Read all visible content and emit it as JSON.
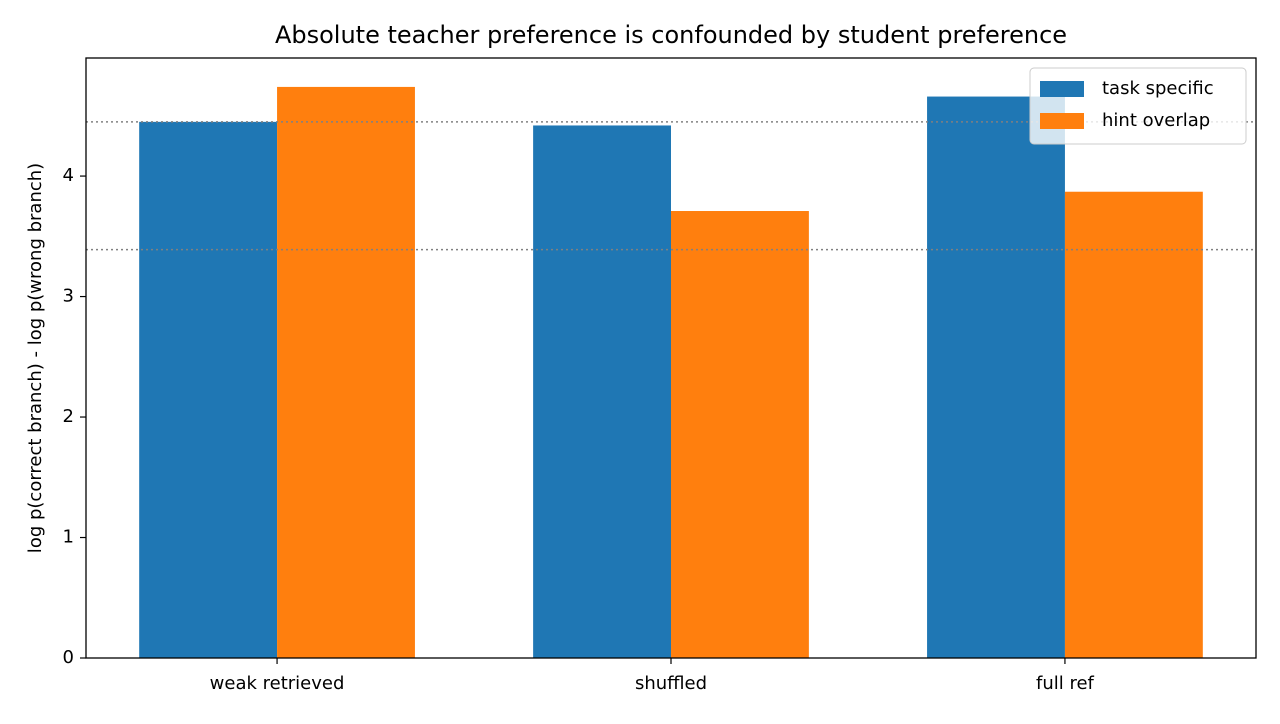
{
  "chart_data": {
    "type": "bar",
    "title": "Absolute teacher preference is confounded by student preference",
    "y_label": "log p(correct branch) - log p(wrong branch)",
    "categories": [
      "weak retrieved",
      "shuffled",
      "full ref"
    ],
    "series": [
      {
        "name": "task specific",
        "color": "#1f77b4",
        "values": [
          4.45,
          4.42,
          4.66
        ]
      },
      {
        "name": "hint overlap",
        "color": "#ff7f0e",
        "values": [
          4.74,
          3.71,
          3.87
        ]
      }
    ],
    "hlines": [
      4.45,
      3.39
    ],
    "hline_color": "#808080",
    "ylim": [
      0,
      4.98
    ],
    "yticks": [
      0,
      1,
      2,
      3,
      4
    ],
    "legend": "upper right"
  }
}
